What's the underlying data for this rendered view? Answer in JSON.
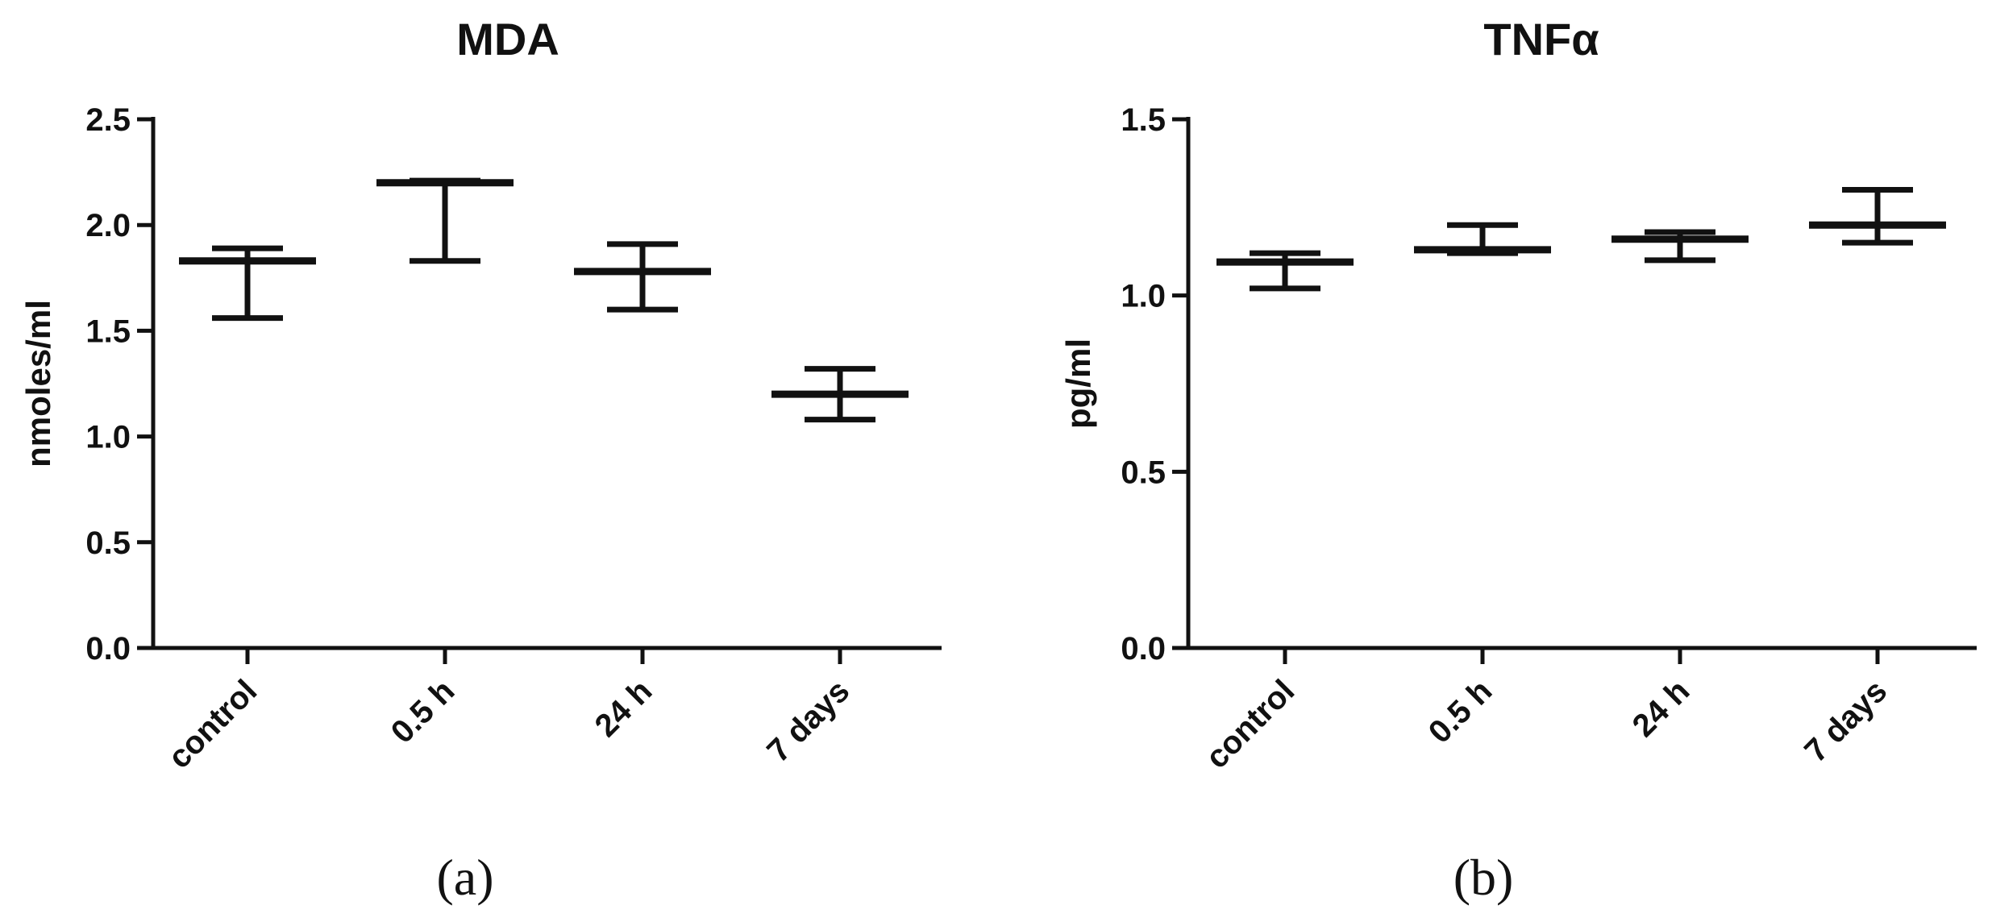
{
  "chart_data": [
    {
      "type": "errorbar",
      "title": "MDA",
      "xlabel": "",
      "ylabel": "nmoles/ml",
      "categories": [
        "control",
        "0.5 h",
        "24 h",
        "7 days"
      ],
      "values": [
        1.83,
        2.2,
        1.78,
        1.2
      ],
      "err_low": [
        1.56,
        1.83,
        1.6,
        1.08
      ],
      "err_high": [
        1.89,
        2.21,
        1.91,
        1.32
      ],
      "ylim": [
        0,
        2.5
      ],
      "yticks": [
        "0.0",
        "0.5",
        "1.0",
        "1.5",
        "2.0",
        "2.5"
      ],
      "panel_label": "(a)",
      "grid": false,
      "legend": "none"
    },
    {
      "type": "errorbar",
      "title": "TNFα",
      "xlabel": "",
      "ylabel": "pg/ml",
      "categories": [
        "control",
        "0.5 h",
        "24 h",
        "7 days"
      ],
      "values": [
        1.095,
        1.13,
        1.16,
        1.2
      ],
      "err_low": [
        1.02,
        1.12,
        1.1,
        1.15
      ],
      "err_high": [
        1.12,
        1.2,
        1.18,
        1.3
      ],
      "ylim": [
        0,
        1.5
      ],
      "yticks": [
        "0.0",
        "0.5",
        "1.0",
        "1.5"
      ],
      "panel_label": "(b)",
      "grid": false,
      "legend": "none"
    }
  ]
}
